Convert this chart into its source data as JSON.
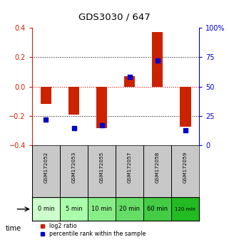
{
  "title": "GDS3030 / 647",
  "samples": [
    "GSM172052",
    "GSM172053",
    "GSM172055",
    "GSM172057",
    "GSM172058",
    "GSM172059"
  ],
  "time_labels": [
    "0 min",
    "5 min",
    "10 min",
    "20 min",
    "60 min",
    "120 min"
  ],
  "log2_ratios": [
    -0.12,
    -0.19,
    -0.28,
    0.07,
    0.37,
    -0.27
  ],
  "percentile_ranks": [
    22,
    15,
    17,
    58,
    72,
    13
  ],
  "bar_color": "#CC2200",
  "dot_color": "#0000CC",
  "ylim_left": [
    -0.4,
    0.4
  ],
  "ylim_right": [
    0,
    100
  ],
  "yticks_left": [
    -0.4,
    -0.2,
    0.0,
    0.2,
    0.4
  ],
  "yticks_right": [
    0,
    25,
    50,
    75,
    100
  ],
  "grid_values_dotted": [
    -0.2,
    0.2
  ],
  "white_bg": "#FFFFFF",
  "gray_bg": "#C8C8C8",
  "green_colors": [
    "#ccffcc",
    "#aaffaa",
    "#88ee88",
    "#66dd66",
    "#44cc44",
    "#22bb22"
  ],
  "legend_red_label": "log2 ratio",
  "legend_blue_label": "percentile rank within the sample",
  "left_axis_color": "#CC2200",
  "right_axis_color": "#0000CC"
}
